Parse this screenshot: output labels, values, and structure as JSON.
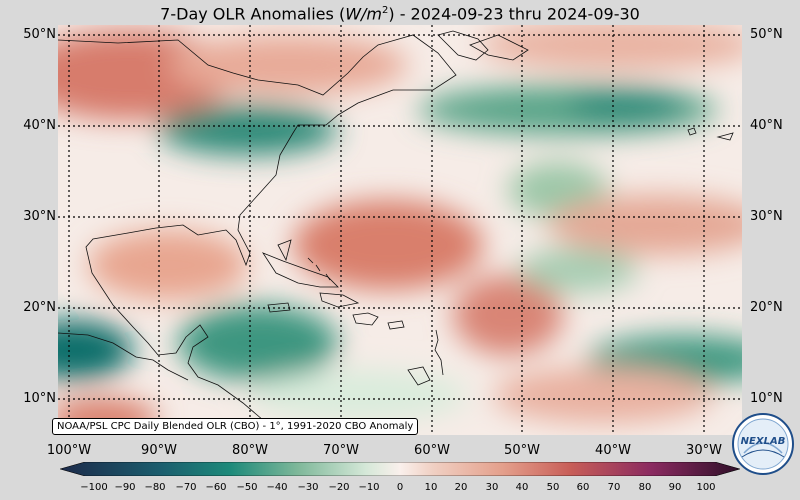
{
  "title_prefix": "7-Day OLR Anomalies (",
  "title_unit_base": "W/m",
  "title_unit_exp": "2",
  "title_suffix": ") - 2024-09-23 thru 2024-09-30",
  "credit": "NOAA/PSL CPC Daily Blended OLR (CBO) - 1°, 1991-2020 CBO Anomaly",
  "logo_text": "NEXLAB",
  "lat_labels": [
    "50°N",
    "40°N",
    "30°N",
    "20°N",
    "10°N"
  ],
  "lon_labels": [
    "100°W",
    "90°W",
    "80°W",
    "70°W",
    "60°W",
    "50°W",
    "40°W",
    "30°W"
  ],
  "colorbar_ticks": [
    "−100",
    "−90",
    "−80",
    "−70",
    "−60",
    "−50",
    "−40",
    "−30",
    "−20",
    "−10",
    "0",
    "10",
    "20",
    "30",
    "40",
    "50",
    "60",
    "70",
    "80",
    "90",
    "100"
  ],
  "colors": {
    "strong_negative": "#0f6e6a",
    "negative": "#7fb89a",
    "near_zero": "#faf0ec",
    "positive": "#e4a08c",
    "strong_positive": "#c85e58",
    "extreme_positive": "#8a2a60",
    "extreme_negative": "#1c2a4a"
  }
}
